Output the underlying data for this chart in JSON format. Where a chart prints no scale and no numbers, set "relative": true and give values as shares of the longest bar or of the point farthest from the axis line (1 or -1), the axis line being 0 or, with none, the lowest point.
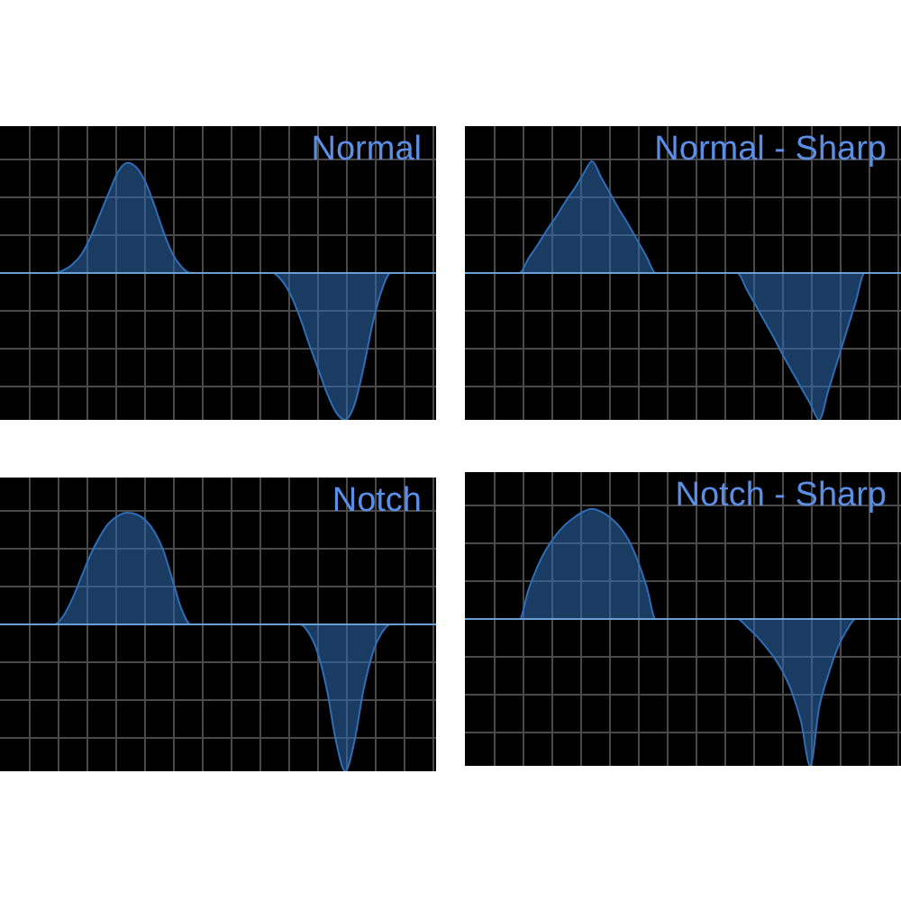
{
  "chart_data": [
    {
      "type": "area",
      "title": "Normal",
      "relative": true,
      "grid": true,
      "categories": [
        null,
        null,
        null,
        null,
        null,
        null,
        null,
        null,
        null,
        null,
        null,
        null,
        null,
        null,
        null,
        null,
        null,
        null,
        null,
        null,
        null,
        null,
        null,
        null,
        null,
        null,
        null,
        null,
        null,
        null,
        null,
        null,
        null,
        null,
        null,
        null,
        null,
        null,
        null,
        null,
        null,
        null,
        null,
        null,
        null,
        null,
        null,
        null,
        null
      ],
      "series": [
        {
          "color": "#2f6db5",
          "values": [
            0,
            0,
            0,
            0,
            0,
            0,
            0,
            0.02,
            0.06,
            0.13,
            0.25,
            0.4,
            0.55,
            0.69,
            0.75,
            0.72,
            0.62,
            0.46,
            0.28,
            0.13,
            0.04,
            0,
            0,
            0,
            0,
            0,
            0,
            0,
            0,
            0,
            0,
            -0.05,
            -0.15,
            -0.3,
            -0.48,
            -0.65,
            -0.82,
            -0.95,
            -1,
            -0.9,
            -0.65,
            -0.35,
            -0.12,
            0,
            0,
            0,
            0,
            0,
            0
          ]
        }
      ]
    },
    {
      "type": "area",
      "title": "Normal - Sharp",
      "relative": true,
      "grid": true,
      "categories": [
        null,
        null,
        null,
        null,
        null,
        null,
        null,
        null,
        null,
        null,
        null,
        null,
        null,
        null,
        null,
        null,
        null,
        null,
        null,
        null,
        null,
        null,
        null,
        null,
        null,
        null,
        null,
        null,
        null,
        null,
        null,
        null,
        null,
        null,
        null,
        null,
        null,
        null,
        null,
        null,
        null,
        null,
        null,
        null,
        null,
        null,
        null,
        null,
        null
      ],
      "series": [
        {
          "color": "#2f6db5",
          "values": [
            0,
            0,
            0,
            0,
            0,
            0,
            0,
            0.1,
            0.19,
            0.29,
            0.38,
            0.48,
            0.57,
            0.67,
            0.76,
            0.65,
            0.54,
            0.43,
            0.33,
            0.22,
            0.11,
            0,
            0,
            0,
            0,
            0,
            0,
            0,
            0,
            0,
            0,
            -0.11,
            -0.22,
            -0.33,
            -0.44,
            -0.56,
            -0.67,
            -0.78,
            -0.89,
            -1,
            -0.8,
            -0.6,
            -0.4,
            -0.2,
            0,
            0,
            0,
            0,
            0
          ]
        }
      ]
    },
    {
      "type": "area",
      "title": "Notch",
      "relative": true,
      "grid": true,
      "categories": [
        null,
        null,
        null,
        null,
        null,
        null,
        null,
        null,
        null,
        null,
        null,
        null,
        null,
        null,
        null,
        null,
        null,
        null,
        null,
        null,
        null,
        null,
        null,
        null,
        null,
        null,
        null,
        null,
        null,
        null,
        null,
        null,
        null,
        null,
        null,
        null,
        null,
        null,
        null,
        null,
        null,
        null,
        null,
        null,
        null,
        null,
        null,
        null,
        null
      ],
      "series": [
        {
          "color": "#2f6db5",
          "values": [
            0,
            0,
            0,
            0,
            0,
            0,
            0,
            0.06,
            0.18,
            0.33,
            0.48,
            0.6,
            0.69,
            0.74,
            0.76,
            0.75,
            0.71,
            0.63,
            0.5,
            0.3,
            0.1,
            0,
            0,
            0,
            0,
            0,
            0,
            0,
            0,
            0,
            0,
            0,
            0,
            0,
            -0.06,
            -0.2,
            -0.45,
            -0.8,
            -1,
            -0.8,
            -0.45,
            -0.2,
            -0.06,
            0,
            0,
            0,
            0,
            0,
            0
          ]
        }
      ]
    },
    {
      "type": "area",
      "title": "Notch - Sharp",
      "relative": true,
      "grid": true,
      "categories": [
        null,
        null,
        null,
        null,
        null,
        null,
        null,
        null,
        null,
        null,
        null,
        null,
        null,
        null,
        null,
        null,
        null,
        null,
        null,
        null,
        null,
        null,
        null,
        null,
        null,
        null,
        null,
        null,
        null,
        null,
        null,
        null,
        null,
        null,
        null,
        null,
        null,
        null,
        null,
        null,
        null,
        null,
        null,
        null,
        null,
        null,
        null,
        null,
        null
      ],
      "series": [
        {
          "color": "#2f6db5",
          "values": [
            0,
            0,
            0,
            0,
            0,
            0,
            0,
            0.2,
            0.36,
            0.48,
            0.57,
            0.64,
            0.69,
            0.73,
            0.75,
            0.73,
            0.69,
            0.63,
            0.54,
            0.4,
            0.22,
            0,
            0,
            0,
            0,
            0,
            0,
            0,
            0,
            0,
            0,
            -0.05,
            -0.11,
            -0.18,
            -0.26,
            -0.36,
            -0.5,
            -0.7,
            -1,
            -0.6,
            -0.38,
            -0.2,
            -0.08,
            0,
            0,
            0,
            0,
            0,
            0
          ]
        }
      ]
    }
  ]
}
